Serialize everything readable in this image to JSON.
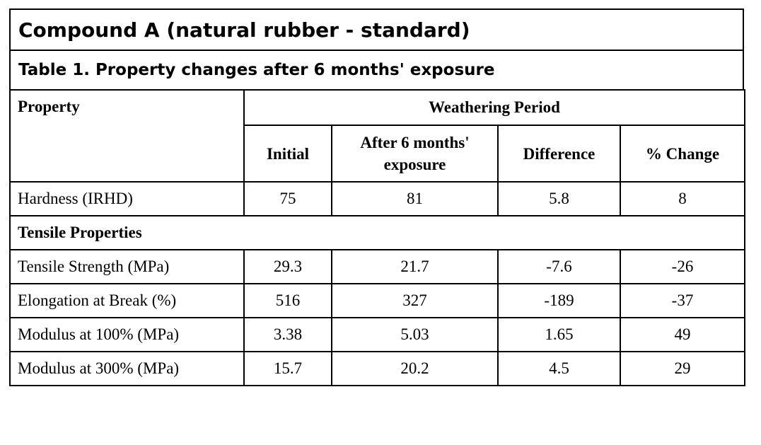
{
  "title": "Compound A (natural rubber - standard)",
  "subtitle": "Table 1. Property changes after 6 months' exposure",
  "header": {
    "property": "Property",
    "group": "Weathering Period",
    "columns": [
      "Initial",
      "After 6 months' exposure",
      "Difference",
      "% Change"
    ]
  },
  "rows": [
    {
      "label": "Hardness (IRHD)",
      "values": [
        "75",
        "81",
        "5.8",
        "8"
      ]
    }
  ],
  "section": "Tensile Properties",
  "tensile_rows": [
    {
      "label": "Tensile Strength (MPa)",
      "values": [
        "29.3",
        "21.7",
        "-7.6",
        "-26"
      ]
    },
    {
      "label": "Elongation at Break (%)",
      "values": [
        "516",
        "327",
        "-189",
        "-37"
      ]
    },
    {
      "label": "Modulus at 100% (MPa)",
      "values": [
        "3.38",
        "5.03",
        "1.65",
        "49"
      ]
    },
    {
      "label": "Modulus at 300% (MPa)",
      "values": [
        "15.7",
        "20.2",
        "4.5",
        "29"
      ]
    }
  ]
}
